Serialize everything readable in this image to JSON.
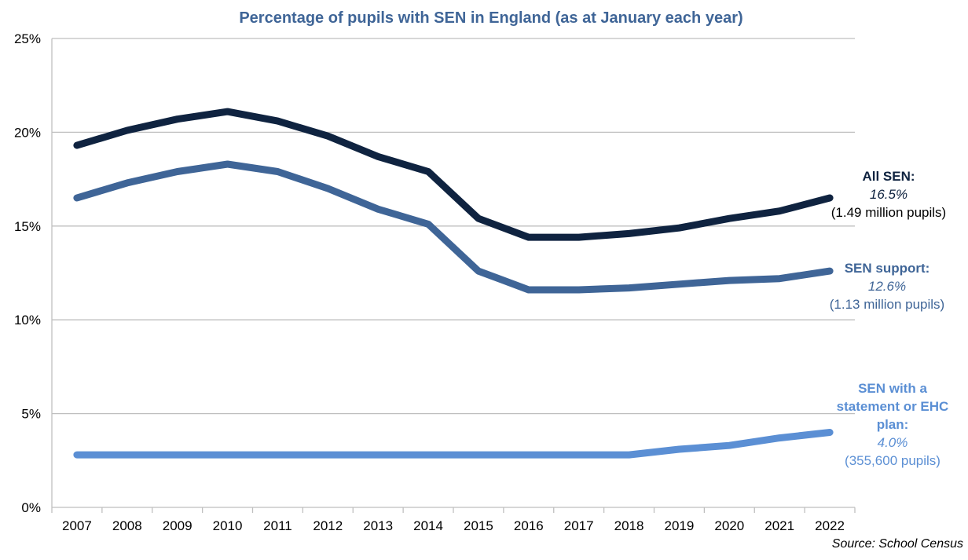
{
  "chart_data": {
    "type": "line",
    "title": "Percentage of pupils with SEN in England (as at January each year)",
    "xlabel": "",
    "ylabel": "",
    "x": [
      "2007",
      "2008",
      "2009",
      "2010",
      "2011",
      "2012",
      "2013",
      "2014",
      "2015",
      "2016",
      "2017",
      "2018",
      "2019",
      "2020",
      "2021",
      "2022"
    ],
    "ylim": [
      0,
      25
    ],
    "yticks": [
      "0%",
      "5%",
      "10%",
      "15%",
      "20%",
      "25%"
    ],
    "grid": true,
    "series": [
      {
        "name": "All SEN",
        "color": "#0f2340",
        "values": [
          19.3,
          20.1,
          20.7,
          21.1,
          20.6,
          19.8,
          18.7,
          17.9,
          15.4,
          14.4,
          14.4,
          14.6,
          14.9,
          15.4,
          15.8,
          16.5
        ]
      },
      {
        "name": "SEN support",
        "color": "#3f6597",
        "values": [
          16.5,
          17.3,
          17.9,
          18.3,
          17.9,
          17.0,
          15.9,
          15.1,
          12.6,
          11.6,
          11.6,
          11.7,
          11.9,
          12.1,
          12.2,
          12.6
        ]
      },
      {
        "name": "SEN with a statement or EHC plan",
        "color": "#5b8fd4",
        "values": [
          2.8,
          2.8,
          2.8,
          2.8,
          2.8,
          2.8,
          2.8,
          2.8,
          2.8,
          2.8,
          2.8,
          2.8,
          3.1,
          3.3,
          3.7,
          4.0
        ]
      }
    ],
    "annotations": {
      "all_sen": {
        "label": "All SEN:",
        "value": "16.5%",
        "detail": "(1.49 million pupils)"
      },
      "sen_support": {
        "label": "SEN support:",
        "value": "12.6%",
        "detail": "(1.13 million pupils)"
      },
      "ehc": {
        "label_lines": [
          "SEN with a",
          "statement or EHC",
          "plan:"
        ],
        "value": "4.0%",
        "detail": "(355,600 pupils)"
      }
    },
    "source": "Source: School Census"
  },
  "colors": {
    "title": "#3f6597",
    "all_sen": "#0f2340",
    "sen_support": "#3f6597",
    "ehc": "#5b8fd4",
    "grid": "#bfbfbf",
    "axis_text": "#000000"
  }
}
